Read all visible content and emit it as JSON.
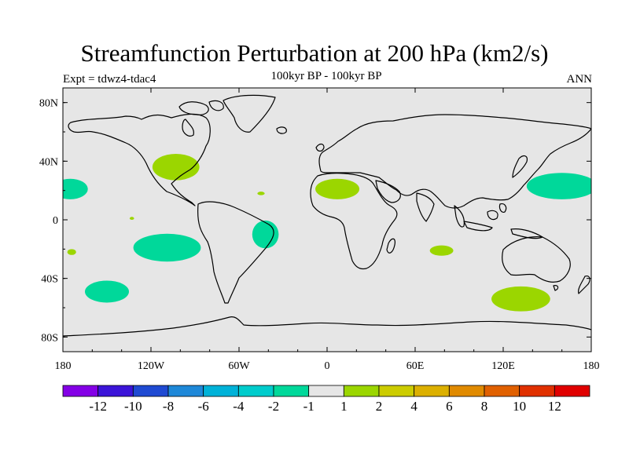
{
  "title": "Streamfunction Perturbation at 200 hPa (km2/s)",
  "subtitle": "100kyr BP - 100kyr BP",
  "left_label": "Expt = tdwz4-tdac4",
  "right_label": "ANN",
  "map": {
    "projection": "cylindrical-equidistant",
    "lon_range": [
      -180,
      180
    ],
    "lat_range": [
      -90,
      90
    ],
    "background_color": "#e6e6e6",
    "y_ticks": [
      {
        "lat": 80,
        "label": "80N"
      },
      {
        "lat": 40,
        "label": "40N"
      },
      {
        "lat": 0,
        "label": "0"
      },
      {
        "lat": -40,
        "label": "40S"
      },
      {
        "lat": -80,
        "label": "80S"
      }
    ],
    "x_ticks": [
      {
        "lon": -180,
        "label": "180"
      },
      {
        "lon": -120,
        "label": "120W"
      },
      {
        "lon": -60,
        "label": "60W"
      },
      {
        "lon": 0,
        "label": "0"
      },
      {
        "lon": 60,
        "label": "60E"
      },
      {
        "lon": 120,
        "label": "120E"
      },
      {
        "lon": 180,
        "label": "180"
      }
    ]
  },
  "anomalies": [
    {
      "name": "anomaly-gulf-of-mexico",
      "bin": "1 to 2",
      "color": "#9bd600",
      "lon": -103,
      "lat": 36,
      "rlon": 16,
      "rlat": 9
    },
    {
      "name": "anomaly-west-africa",
      "bin": "1 to 2",
      "color": "#9bd600",
      "lon": 7,
      "lat": 21,
      "rlon": 15,
      "rlat": 7
    },
    {
      "name": "anomaly-indian-ocean",
      "bin": "1 to 2",
      "color": "#9bd600",
      "lon": 78,
      "lat": -21,
      "rlon": 8,
      "rlat": 3.5
    },
    {
      "name": "anomaly-southern-ocean-east",
      "bin": "1 to 2",
      "color": "#9bd600",
      "lon": 132,
      "lat": -54,
      "rlon": 20,
      "rlat": 8.5
    },
    {
      "name": "anomaly-central-pacific-north",
      "bin": "-2 to -1",
      "color": "#00d89a",
      "lon": -175,
      "lat": 21,
      "rlon": 12,
      "rlat": 7
    },
    {
      "name": "anomaly-west-pacific-north",
      "bin": "-2 to -1",
      "color": "#00d89a",
      "lon": 160,
      "lat": 23,
      "rlon": 24,
      "rlat": 9
    },
    {
      "name": "anomaly-east-pacific-south",
      "bin": "-2 to -1",
      "color": "#00d89a",
      "lon": -109,
      "lat": -19,
      "rlon": 23,
      "rlat": 9.5
    },
    {
      "name": "anomaly-brazil",
      "bin": "-2 to -1",
      "color": "#00d89a",
      "lon": -42,
      "lat": -10,
      "rlon": 9,
      "rlat": 9.5
    },
    {
      "name": "anomaly-south-pacific",
      "bin": "-2 to -1",
      "color": "#00d89a",
      "lon": -150,
      "lat": -49,
      "rlon": 15,
      "rlat": 7.5
    },
    {
      "name": "anomaly-pacific-small-1",
      "bin": "1 to 2",
      "color": "#9bd600",
      "lon": -174,
      "lat": -22,
      "rlon": 3,
      "rlat": 2
    },
    {
      "name": "anomaly-atlantic-small",
      "bin": "1 to 2",
      "color": "#9bd600",
      "lon": -45,
      "lat": 18,
      "rlon": 2.5,
      "rlat": 1.2
    },
    {
      "name": "anomaly-pacific-small-2",
      "bin": "1 to 2",
      "color": "#9bd600",
      "lon": -133,
      "lat": 1,
      "rlon": 1.5,
      "rlat": 1
    }
  ],
  "colorbar": {
    "colors": [
      "#8400e6",
      "#3b14d8",
      "#1f4ad2",
      "#1e88d8",
      "#00b2d8",
      "#00cccc",
      "#00d89a",
      "#e6e6e6",
      "#9bd600",
      "#cccc00",
      "#dcb000",
      "#e08a00",
      "#e06000",
      "#e03000",
      "#e00000"
    ],
    "labels": [
      "-12",
      "-10",
      "-8",
      "-6",
      "-4",
      "-2",
      "-1",
      "1",
      "2",
      "4",
      "6",
      "8",
      "10",
      "12"
    ]
  }
}
